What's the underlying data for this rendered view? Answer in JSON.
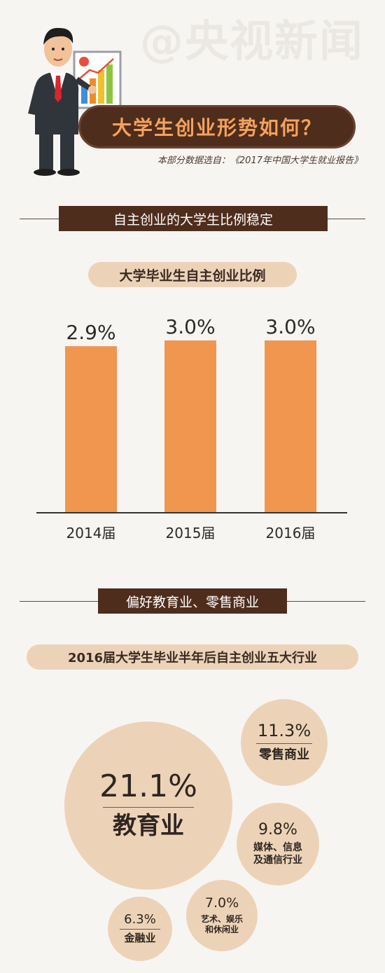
{
  "watermark": "@央视新闻",
  "header": {
    "title": "大学生创业形势如何？",
    "source": "本部分数据选自：《2017年中国大学生就业报告》"
  },
  "section1": {
    "heading": "自主创业的大学生比例稳定",
    "chart_title": "大学毕业生自主创业比例"
  },
  "section2": {
    "heading": "偏好教育业、零售商业",
    "chart_title": "2016届大学生毕业半年后自主创业五大行业"
  },
  "colors": {
    "bar": "#f0964f",
    "dark_brown": "#4f2d1d",
    "beige": "#ecd3b8",
    "title_orange": "#f5a25b"
  },
  "chart_data": [
    {
      "type": "bar",
      "title": "大学毕业生自主创业比例",
      "categories": [
        "2014届",
        "2015届",
        "2016届"
      ],
      "values": [
        2.9,
        3.0,
        3.0
      ],
      "value_labels": [
        "2.9%",
        "3.0%",
        "3.0%"
      ],
      "unit": "%",
      "ylim": [
        0,
        3.0
      ],
      "grid": false
    },
    {
      "type": "bubble",
      "title": "2016届大学生毕业半年后自主创业五大行业",
      "items": [
        {
          "label": "教育业",
          "value": 21.1,
          "value_label": "21.1%"
        },
        {
          "label": "零售商业",
          "value": 11.3,
          "value_label": "11.3%"
        },
        {
          "label": "媒体、信息\n及通信行业",
          "value": 9.8,
          "value_label": "9.8%"
        },
        {
          "label": "艺术、娱乐\n和休闲业",
          "value": 7.0,
          "value_label": "7.0%"
        },
        {
          "label": "金融业",
          "value": 6.3,
          "value_label": "6.3%"
        }
      ]
    }
  ]
}
